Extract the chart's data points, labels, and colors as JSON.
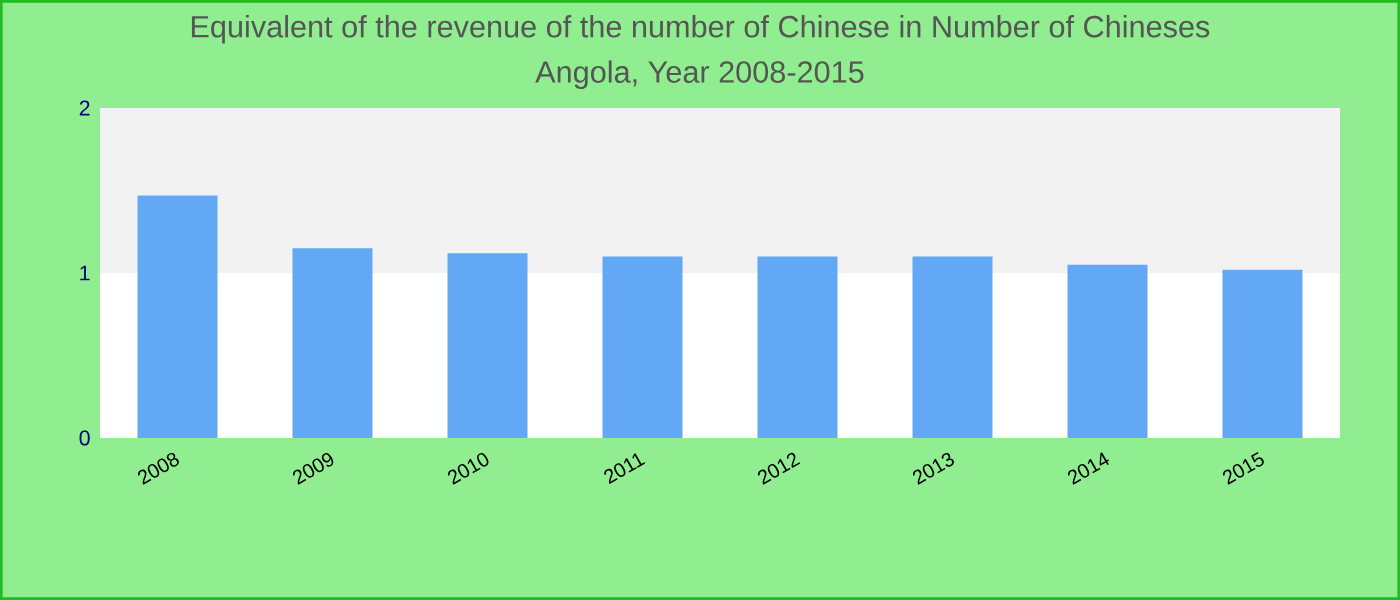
{
  "chart_data": {
    "type": "bar",
    "title": "Equivalent of the revenue of the number of Chinese  in Number of Chineses",
    "subtitle": "Angola, Year 2008-2015",
    "categories": [
      "2008",
      "2009",
      "2010",
      "2011",
      "2012",
      "2013",
      "2014",
      "2015"
    ],
    "values": [
      1.47,
      1.15,
      1.12,
      1.1,
      1.1,
      1.1,
      1.05,
      1.02
    ],
    "color": "#63a8f5",
    "ylim": [
      0,
      2
    ],
    "yticks": [
      0,
      1,
      2
    ],
    "bands": [
      {
        "axis": "y",
        "from": 1,
        "to": 2,
        "color": "#f2f2f2"
      }
    ]
  }
}
